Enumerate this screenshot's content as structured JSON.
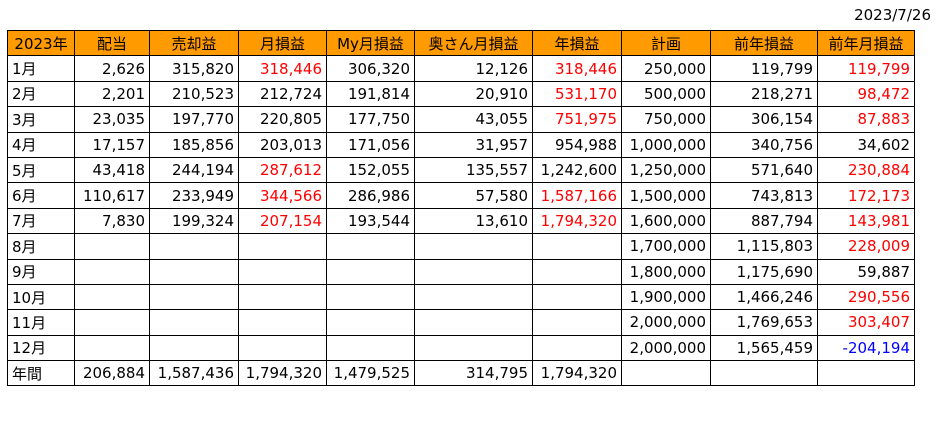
{
  "date": "2023/7/26",
  "headers": [
    "2023年",
    "配当",
    "売却益",
    "月損益",
    "My月損益",
    "奥さん月損益",
    "年損益",
    "計画",
    "前年損益",
    "前年月損益"
  ],
  "rows": [
    {
      "label": "1月",
      "cells": [
        "2,626",
        "315,820",
        "318,446",
        "306,320",
        "12,126",
        "318,446",
        "250,000",
        "119,799",
        "119,799"
      ]
    },
    {
      "label": "2月",
      "cells": [
        "2,201",
        "210,523",
        "212,724",
        "191,814",
        "20,910",
        "531,170",
        "500,000",
        "218,271",
        "98,472"
      ]
    },
    {
      "label": "3月",
      "cells": [
        "23,035",
        "197,770",
        "220,805",
        "177,750",
        "43,055",
        "751,975",
        "750,000",
        "306,154",
        "87,883"
      ]
    },
    {
      "label": "4月",
      "cells": [
        "17,157",
        "185,856",
        "203,013",
        "171,056",
        "31,957",
        "954,988",
        "1,000,000",
        "340,756",
        "34,602"
      ]
    },
    {
      "label": "5月",
      "cells": [
        "43,418",
        "244,194",
        "287,612",
        "152,055",
        "135,557",
        "1,242,600",
        "1,250,000",
        "571,640",
        "230,884"
      ]
    },
    {
      "label": "6月",
      "cells": [
        "110,617",
        "233,949",
        "344,566",
        "286,986",
        "57,580",
        "1,587,166",
        "1,500,000",
        "743,813",
        "172,173"
      ]
    },
    {
      "label": "7月",
      "cells": [
        "7,830",
        "199,324",
        "207,154",
        "193,544",
        "13,610",
        "1,794,320",
        "1,600,000",
        "887,794",
        "143,981"
      ]
    },
    {
      "label": "8月",
      "cells": [
        "",
        "",
        "",
        "",
        "",
        "",
        "1,700,000",
        "1,115,803",
        "228,009"
      ]
    },
    {
      "label": "9月",
      "cells": [
        "",
        "",
        "",
        "",
        "",
        "",
        "1,800,000",
        "1,175,690",
        "59,887"
      ]
    },
    {
      "label": "10月",
      "cells": [
        "",
        "",
        "",
        "",
        "",
        "",
        "1,900,000",
        "1,466,246",
        "290,556"
      ]
    },
    {
      "label": "11月",
      "cells": [
        "",
        "",
        "",
        "",
        "",
        "",
        "2,000,000",
        "1,769,653",
        "303,407"
      ]
    },
    {
      "label": "12月",
      "cells": [
        "",
        "",
        "",
        "",
        "",
        "",
        "2,000,000",
        "1,565,459",
        "-204,194"
      ]
    },
    {
      "label": "年間",
      "cells": [
        "206,884",
        "1,587,436",
        "1,794,320",
        "1,479,525",
        "314,795",
        "1,794,320",
        "",
        "",
        ""
      ]
    }
  ],
  "colors": {
    "header_bg": "#ff9a00",
    "highlight_red": "#ff0000",
    "negative_blue": "#0000ff",
    "red_cells": [
      [
        0,
        2
      ],
      [
        0,
        5
      ],
      [
        0,
        8
      ],
      [
        1,
        5
      ],
      [
        1,
        8
      ],
      [
        2,
        5
      ],
      [
        2,
        8
      ],
      [
        4,
        2
      ],
      [
        4,
        8
      ],
      [
        5,
        2
      ],
      [
        5,
        5
      ],
      [
        5,
        8
      ],
      [
        6,
        2
      ],
      [
        6,
        5
      ],
      [
        6,
        8
      ],
      [
        7,
        8
      ],
      [
        9,
        8
      ],
      [
        10,
        8
      ]
    ],
    "blue_cells": [
      [
        11,
        8
      ]
    ]
  }
}
